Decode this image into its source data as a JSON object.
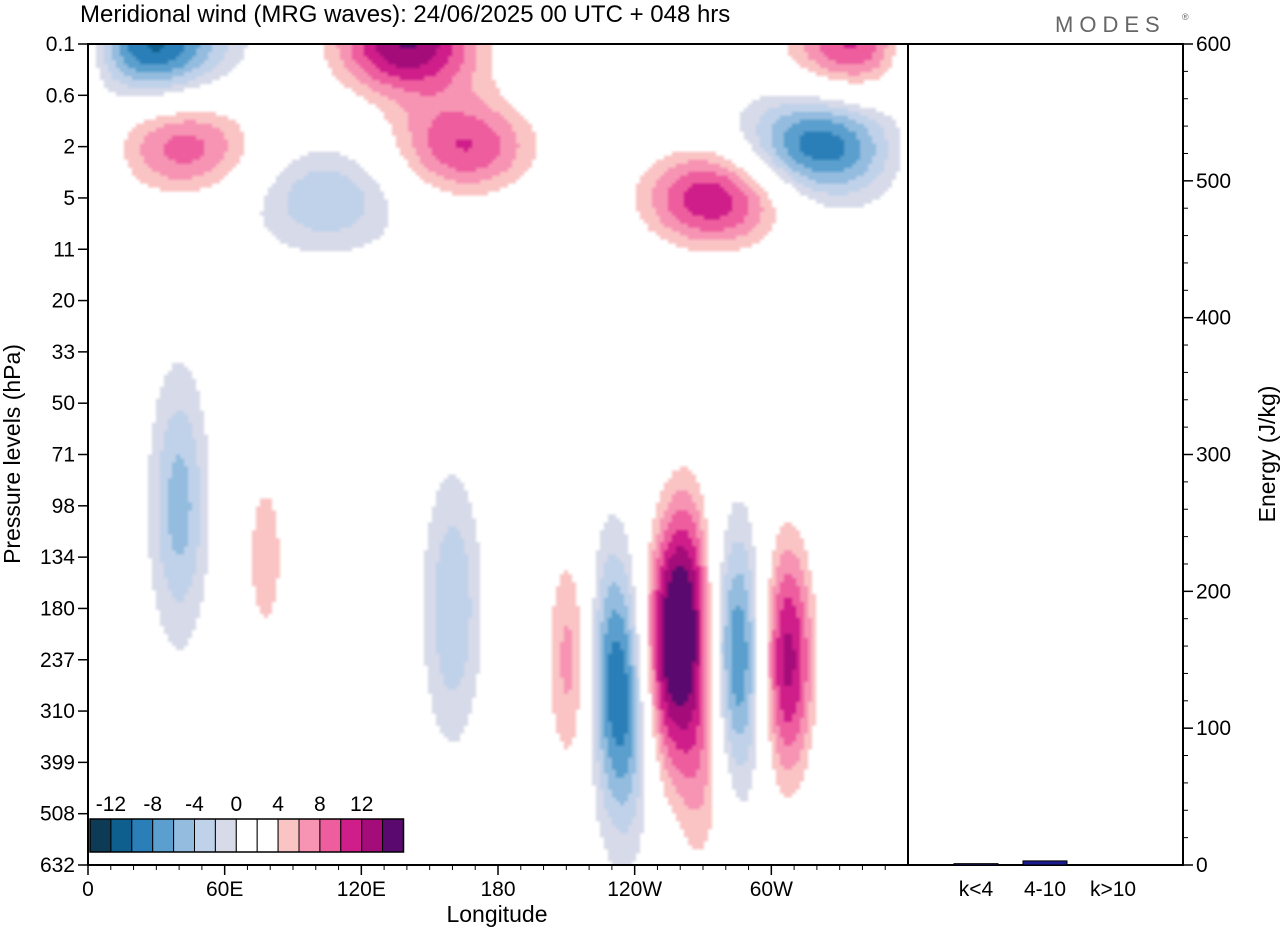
{
  "title": "Meridional wind (MRG waves):  24/06/2025  00 UTC  + 048 hrs",
  "logo": "MODES",
  "logo_mark": "®",
  "chart_data": [
    {
      "type": "heatmap",
      "title": "Meridional wind (MRG waves):  24/06/2025  00 UTC  + 048 hrs",
      "xlabel": "Longitude",
      "ylabel": "Pressure levels (hPa)",
      "x_ticks": [
        "0",
        "60E",
        "120E",
        "180",
        "120W",
        "60W"
      ],
      "y_ticks": [
        "0.1",
        "0.6",
        "2",
        "5",
        "11",
        "20",
        "33",
        "50",
        "71",
        "98",
        "134",
        "180",
        "237",
        "310",
        "399",
        "508",
        "632"
      ],
      "colorbar": {
        "labels": [
          "-12",
          "-8",
          "-4",
          "0",
          "4",
          "8",
          "12"
        ],
        "levels": [
          -14,
          -12,
          -10,
          -8,
          -6,
          -4,
          -2,
          2,
          4,
          6,
          8,
          10,
          12,
          14
        ],
        "colors": [
          "#0d3a55",
          "#0e5f8d",
          "#2b7fb8",
          "#5a9fcd",
          "#93bcdf",
          "#c0d2ea",
          "#d7dae9",
          "#ffffff",
          "#ffffff",
          "#fbc4c4",
          "#f794b4",
          "#ee5e9e",
          "#cf1e8a",
          "#a40c7a",
          "#5a0a6e"
        ]
      },
      "features": [
        {
          "lon": 25,
          "level": "0.1",
          "value": -14
        },
        {
          "lon": 140,
          "level": "0.1",
          "value": 14
        },
        {
          "lon": 42,
          "level": "2",
          "value": 9
        },
        {
          "lon": 165,
          "level": "2",
          "value": 10
        },
        {
          "lon": 105,
          "level": "5",
          "value": -6
        },
        {
          "lon": 275,
          "level": "5",
          "value": 12
        },
        {
          "lon": 320,
          "level": "2",
          "value": -12
        },
        {
          "lon": 340,
          "level": "0.1",
          "value": 12
        },
        {
          "lon": 40,
          "level": "98",
          "value": -7
        },
        {
          "lon": 78,
          "level": "134",
          "value": 5
        },
        {
          "lon": 160,
          "level": "180",
          "value": -6
        },
        {
          "lon": 213,
          "level": "237",
          "value": 8
        },
        {
          "lon": 227,
          "level": "237",
          "value": -7
        },
        {
          "lon": 252,
          "level": "237",
          "value": 10
        },
        {
          "lon": 237,
          "level": "310",
          "value": -9
        },
        {
          "lon": 263,
          "level": "180",
          "value": 12
        },
        {
          "lon": 285,
          "level": "237",
          "value": -11
        },
        {
          "lon": 307,
          "level": "237",
          "value": 13
        },
        {
          "lon": 270,
          "level": "399",
          "value": 6
        }
      ]
    },
    {
      "type": "bar",
      "categories": [
        "k<4",
        "4-10",
        "k>10"
      ],
      "values": [
        1,
        3,
        0
      ],
      "ylabel": "Energy (J/kg)",
      "ylim": [
        0,
        600
      ],
      "y_ticks": [
        "0",
        "100",
        "200",
        "300",
        "400",
        "500",
        "600"
      ],
      "bar_color": "#1a1a8c"
    }
  ]
}
